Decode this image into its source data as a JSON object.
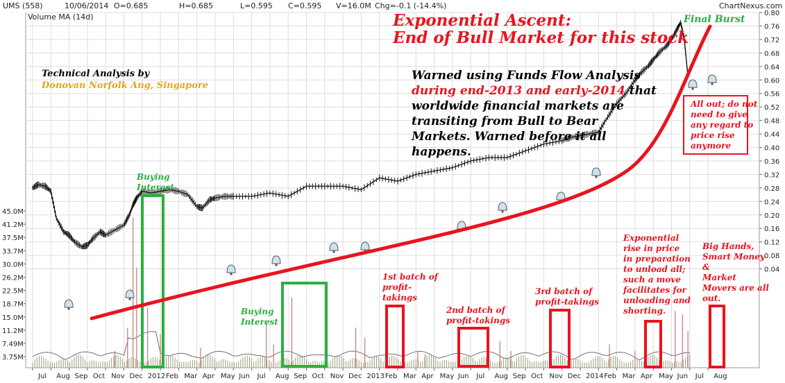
{
  "header": {
    "symbol": "UMS (558)",
    "date": "10/06/2014",
    "open": "O=0.685",
    "high": "H=0.685",
    "low": "L=0.595",
    "close": "C=0.595",
    "volume": "V=16.0M",
    "change": "Chg=-0.1 (-14.4%)",
    "source": "ChartNexus.com",
    "volume_ma": "Volume MA (14d)"
  },
  "chart_data": {
    "type": "line",
    "title": "Exponential Ascent:",
    "subtitle": "End of Bull Market for this stock",
    "x_ticks": [
      "Jul",
      "Aug",
      "Sep",
      "Oct",
      "Nov",
      "Dec",
      "2012",
      "Feb",
      "Mar",
      "Apr",
      "May",
      "Jun",
      "Jul",
      "Aug",
      "Sep",
      "Oct",
      "Nov",
      "Dec",
      "2013",
      "Feb",
      "Mar",
      "Apr",
      "May",
      "Jun",
      "Jul",
      "Aug",
      "Sep",
      "Oct",
      "Nov",
      "Dec",
      "2014",
      "Feb",
      "Mar",
      "Apr",
      "May",
      "Jun",
      "Jul",
      "Aug"
    ],
    "price_ticks": [
      "0.80",
      "0.76",
      "0.72",
      "0.68",
      "0.64",
      "0.60",
      "0.56",
      "0.52",
      "0.48",
      "0.44",
      "0.40",
      "0.36",
      "0.32",
      "0.28",
      "0.24",
      "0.20",
      "0.16",
      "0.12",
      "0.08",
      "0.04"
    ],
    "volume_ticks": [
      "45.0M",
      "41.2M",
      "37.5M",
      "33.7M",
      "30.0M",
      "26.2M",
      "22.5M",
      "18.7M",
      "15.0M",
      "11.2M",
      "7.49M",
      "3.75M"
    ],
    "price_range": [
      0.04,
      0.8
    ],
    "volume_range_m": [
      0,
      47
    ],
    "price_series": {
      "name": "UMS (558)",
      "x_months": [
        0,
        0.3,
        0.7,
        1.0,
        1.3,
        1.7,
        2.0,
        2.3,
        2.7,
        3.0,
        3.3,
        3.7,
        4.0,
        4.5,
        5.0,
        5.3,
        5.5,
        5.7,
        6.0,
        6.5,
        7.0,
        7.5,
        8.0,
        8.5,
        9.0,
        9.3,
        9.7,
        10.0,
        10.5,
        11.0,
        12.0,
        13.0,
        14.0,
        15.0,
        16.0,
        17.0,
        18.0,
        19.0,
        20.0,
        21.0,
        22.0,
        23.0,
        24.0,
        25.0,
        26.0,
        27.0,
        28.0,
        29.0,
        29.5,
        30.0,
        30.5,
        31.0,
        31.5,
        32.0,
        32.5,
        33.0,
        33.3,
        33.7,
        34.0,
        34.3,
        34.7,
        35.0,
        35.3,
        35.5,
        35.7,
        35.9
      ],
      "close": [
        0.28,
        0.29,
        0.285,
        0.27,
        0.19,
        0.15,
        0.14,
        0.12,
        0.105,
        0.11,
        0.13,
        0.15,
        0.14,
        0.155,
        0.17,
        0.2,
        0.23,
        0.25,
        0.27,
        0.265,
        0.27,
        0.275,
        0.27,
        0.26,
        0.225,
        0.22,
        0.245,
        0.25,
        0.255,
        0.255,
        0.255,
        0.265,
        0.255,
        0.285,
        0.285,
        0.285,
        0.275,
        0.31,
        0.3,
        0.32,
        0.33,
        0.34,
        0.36,
        0.37,
        0.37,
        0.39,
        0.41,
        0.42,
        0.43,
        0.435,
        0.44,
        0.445,
        0.49,
        0.53,
        0.56,
        0.6,
        0.62,
        0.64,
        0.66,
        0.68,
        0.7,
        0.72,
        0.75,
        0.77,
        0.72,
        0.61
      ]
    },
    "volume_series": {
      "name": "Volume",
      "spikes": [
        {
          "m": 4.5,
          "v": 5
        },
        {
          "m": 5.2,
          "v": 12
        },
        {
          "m": 5.5,
          "v": 45
        },
        {
          "m": 5.7,
          "v": 30
        },
        {
          "m": 6.0,
          "v": 22
        },
        {
          "m": 6.3,
          "v": 18
        },
        {
          "m": 7.0,
          "v": 10
        },
        {
          "m": 9.2,
          "v": 6
        },
        {
          "m": 12.8,
          "v": 14
        },
        {
          "m": 13.2,
          "v": 7
        },
        {
          "m": 14.2,
          "v": 21
        },
        {
          "m": 17.7,
          "v": 12
        },
        {
          "m": 18.2,
          "v": 9
        },
        {
          "m": 21.1,
          "v": 5
        },
        {
          "m": 21.5,
          "v": 4
        },
        {
          "m": 25.6,
          "v": 8
        },
        {
          "m": 26.2,
          "v": 5
        },
        {
          "m": 31.6,
          "v": 7
        },
        {
          "m": 33.0,
          "v": 5
        },
        {
          "m": 35.2,
          "v": 17
        },
        {
          "m": 35.6,
          "v": 16
        },
        {
          "m": 35.9,
          "v": 11
        }
      ]
    },
    "grid": true
  },
  "annotations": {
    "technical_by": "Technical Analysis by",
    "author": "Donovan Norfolk Ang, Singapore",
    "warning": [
      {
        "text": "Warned using Funds Flow Analysis",
        "color": "#000000"
      },
      {
        "text": "during end-2013 and early-2014",
        "color": "#e8141e",
        "tail": " that"
      },
      {
        "text": "worldwide financial markets are",
        "color": "#000000"
      },
      {
        "text": "transiting from Bull to Bear",
        "color": "#000000"
      },
      {
        "text": "Markets. Warned before it all",
        "color": "#000000"
      },
      {
        "text": "happens.",
        "color": "#000000"
      }
    ],
    "final_burst": "Final Burst",
    "all_out": [
      "All out; do not",
      "need to give",
      "any regard to",
      "price rise",
      "anymore"
    ],
    "buying_interest_1": [
      "Buying",
      "Interest"
    ],
    "buying_interest_2": [
      "Buying",
      "Interest"
    ],
    "batch1": [
      "1st batch of",
      "profit-",
      "takings"
    ],
    "batch2": [
      "2nd batch of",
      "profit-takings"
    ],
    "batch3": [
      "3rd batch of",
      "profit-takings"
    ],
    "exponential": [
      "Exponential",
      "rise in price",
      "in preparation",
      "to unload all;",
      "such a move",
      "facilitates for",
      "unloading and",
      "shorting."
    ],
    "big_hands": [
      "Big Hands,",
      "Smart Money",
      "&",
      "Market",
      "Movers are all",
      "out."
    ]
  },
  "colors": {
    "price_line": "#111111",
    "trend_curve": "#e8141e",
    "green_box": "#2bb03f",
    "red_box": "#e8141e",
    "annotation_red": "#e8141e",
    "annotation_green": "#2bb03f",
    "author_gold": "#e0a818",
    "volume_bar": "#9aa07a",
    "grid": "#dddddd"
  }
}
